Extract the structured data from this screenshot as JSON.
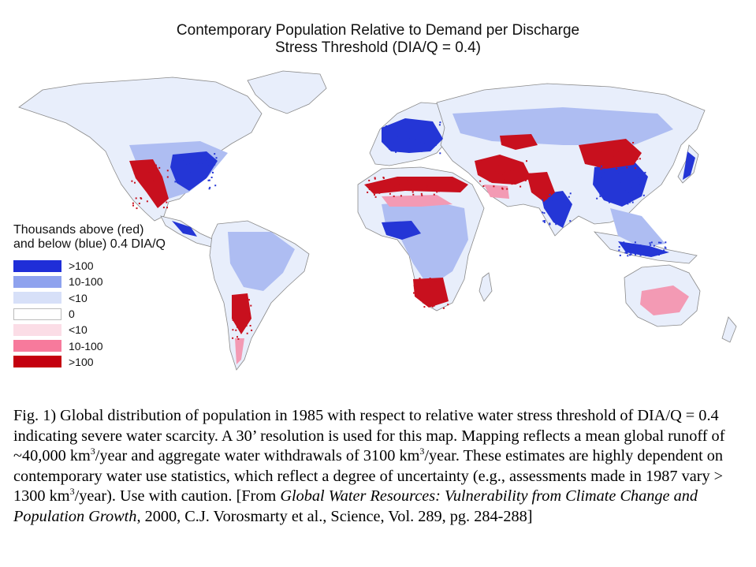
{
  "title": {
    "line1": "Contemporary Population Relative to Demand per Discharge",
    "line2": "Stress Threshold (DIA/Q = 0.4)"
  },
  "legend": {
    "title_line1": "Thousands above (red)",
    "title_line2": "and below (blue) 0.4 DIA/Q",
    "items": [
      {
        "label": ">100",
        "color": "#1f2ed8"
      },
      {
        "label": "10-100",
        "color": "#8ea2ee"
      },
      {
        "label": "<10",
        "color": "#d7e0f8"
      },
      {
        "label": "0",
        "color": "#ffffff"
      },
      {
        "label": "<10",
        "color": "#fbdde6"
      },
      {
        "label": "10-100",
        "color": "#f77a9c"
      },
      {
        "label": ">100",
        "color": "#c4000f"
      }
    ]
  },
  "colors": {
    "ocean": "#ffffff",
    "coastline": "#8a8a8a",
    "land_light": "#e8eefb",
    "land_mid": "#aebdf2",
    "dense_blue": "#2436d6",
    "dense_red": "#c8101e",
    "pink": "#f39ab4"
  },
  "caption": {
    "p1": "Fig. 1) Global distribution of population in 1985 with respect to relative water stress threshold of DIA/Q = 0.4 indicating severe water scarcity. A 30’ resolution is used for this map. Mapping reflects a mean global runoff of ~40,000 km",
    "sup1": "3",
    "p2": "/year and aggregate water withdrawals of 3100 km",
    "sup2": "3",
    "p3": "/year. These estimates are highly dependent on contemporary water use statistics, which reflect a degree of uncertainty (e.g., assessments made in 1987 vary > 1300 km",
    "sup3": "3",
    "p4": "/year). Use with caution.  [From ",
    "source_title": "Global Water Resources: Vulnerability from Climate Change and Population Growth",
    "source_rest": ", 2000, C.J. Vorosmarty et al., Science, Vol. 289, pg. 284-288]"
  }
}
